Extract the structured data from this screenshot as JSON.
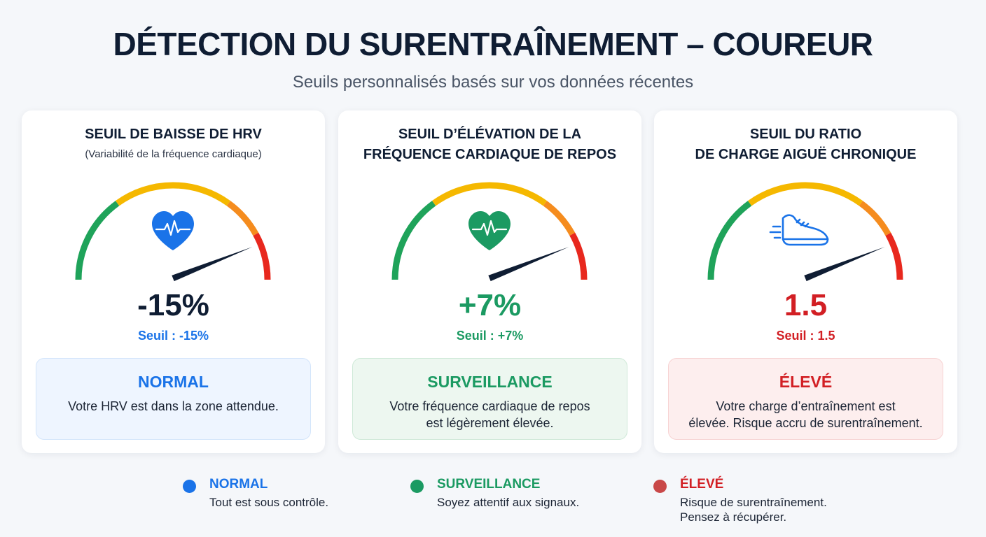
{
  "header": {
    "title": "DÉTECTION DU SURENTRAÎNEMENT – COUREUR",
    "subtitle": "Seuils personnalisés basés sur vos données récentes"
  },
  "colors": {
    "blue": "#1a73e8",
    "green": "#1b9a62",
    "red": "#d21f24",
    "gauge_green": "#1fa35a",
    "gauge_yellow": "#f5b800",
    "gauge_orange": "#f58c1e",
    "gauge_red": "#e8281e",
    "needle": "#0f1d33"
  },
  "cards": [
    {
      "title": "SEUIL DE BAISSE DE HRV",
      "note": "(Variabilité de la fréquence cardiaque)",
      "icon": "heart-pulse-icon",
      "gauge_level": 0.88,
      "value": "-15%",
      "threshold": "Seuil : -15%",
      "status_label": "NORMAL",
      "status_text": "Votre HRV est dans la zone attendue.",
      "accent": "#1a73e8",
      "value_color": "#0f1d33",
      "box_bg": "#eef5ff",
      "box_border": "#d3e5fb"
    },
    {
      "title": "SEUIL D’ÉLÉVATION DE LA\nFRÉQUENCE CARDIAQUE DE REPOS",
      "note": "",
      "icon": "heart-pulse-icon",
      "gauge_level": 0.88,
      "value": "+7%",
      "threshold": "Seuil : +7%",
      "status_label": "SURVEILLANCE",
      "status_text": "Votre fréquence cardiaque de repos\nest légèrement élevée.",
      "accent": "#1b9a62",
      "value_color": "#1b9a62",
      "box_bg": "#edf7f0",
      "box_border": "#cfe9d8"
    },
    {
      "title": "SEUIL DU RATIO\nDE CHARGE AIGUË CHRONIQUE",
      "note": "",
      "icon": "running-shoe-icon",
      "gauge_level": 0.88,
      "value": "1.5",
      "threshold": "Seuil : 1.5",
      "status_label": "ÉLEVÉ",
      "status_text": "Votre charge d’entraînement est\nélevée. Risque accru de surentraînement.",
      "accent": "#d21f24",
      "value_color": "#d21f24",
      "box_bg": "#fdeeee",
      "box_border": "#f7d3d3"
    }
  ],
  "legend": [
    {
      "label": "NORMAL",
      "desc": "Tout est sous contrôle.",
      "color": "#1a73e8"
    },
    {
      "label": "SURVEILLANCE",
      "desc": "Soyez attentif aux signaux.",
      "color": "#1b9a62"
    },
    {
      "label": "ÉLEVÉ",
      "desc": "Risque de surentraînement.\nPensez à récupérer.",
      "color": "#d21f24",
      "dot_color": "#c94848"
    }
  ]
}
